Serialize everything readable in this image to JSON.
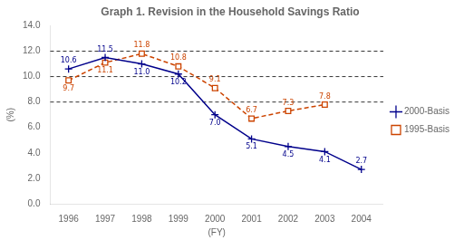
{
  "chart_data": {
    "type": "line",
    "title": "Graph 1. Revision in the Household Savings Ratio",
    "xlabel": "(FY)",
    "ylabel": "(%)",
    "x": [
      1996,
      1997,
      1998,
      1999,
      2000,
      2001,
      2002,
      2003,
      2004
    ],
    "series": [
      {
        "name": "2000-Basis",
        "color": "#00008B",
        "marker": "plus",
        "line_style": "solid",
        "values": [
          10.6,
          11.5,
          11.0,
          10.2,
          7.0,
          5.1,
          4.5,
          4.1,
          2.7
        ],
        "value_labels": [
          "10.6",
          "11.5",
          "11.0",
          "10.2",
          "7.0",
          "5.1",
          "4.5",
          "4.1",
          "2.7"
        ]
      },
      {
        "name": "1995-Basis",
        "color": "#CC4400",
        "marker": "square",
        "line_style": "dashed",
        "values": [
          9.7,
          11.1,
          11.8,
          10.8,
          9.1,
          6.7,
          7.3,
          7.8,
          null
        ],
        "value_labels": [
          "9.7",
          "11.1",
          "11.8",
          "10.8",
          "9.1",
          "6.7",
          "7.3",
          "7.8",
          null
        ]
      }
    ],
    "xlim": [
      1995.5,
      2004.6
    ],
    "xticks": [
      1996,
      1997,
      1998,
      1999,
      2000,
      2001,
      2002,
      2003,
      2004
    ],
    "ylim": [
      0.0,
      14.0
    ],
    "yticks": [
      {
        "value": 0,
        "label": "0.0"
      },
      {
        "value": 2,
        "label": "2.0"
      },
      {
        "value": 4,
        "label": "4.0"
      },
      {
        "value": 6,
        "label": "6.0"
      },
      {
        "value": 8,
        "label": "8.0"
      },
      {
        "value": 10,
        "label": "10.0"
      },
      {
        "value": 12,
        "label": "12.0"
      },
      {
        "value": 14,
        "label": "14.0"
      }
    ],
    "hlines": [
      8.0,
      10.0,
      12.0
    ],
    "grid": false,
    "legend": "right",
    "data_labels": true
  }
}
